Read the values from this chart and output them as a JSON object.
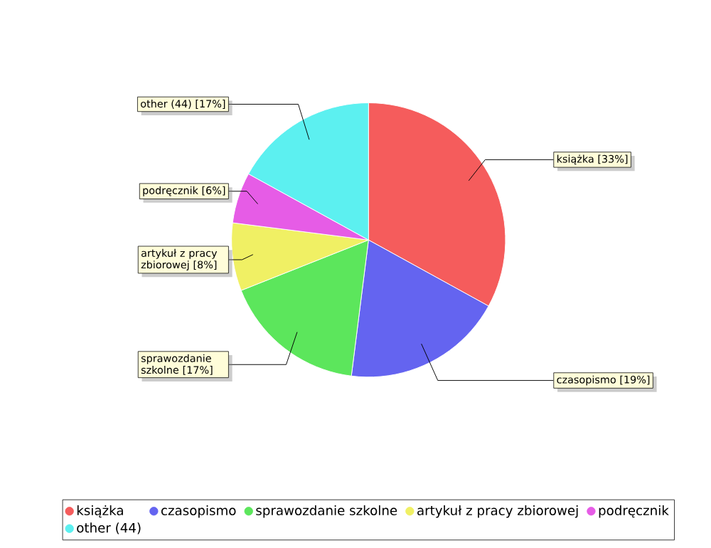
{
  "chart_data": {
    "type": "pie",
    "categories": [
      "książka",
      "czasopismo",
      "sprawozdanie szkolne",
      "artykuł z pracy zbiorowej",
      "podręcznik",
      "other (44)"
    ],
    "values": [
      33,
      19,
      17,
      8,
      6,
      17
    ],
    "value_labels": [
      "książka [33%]",
      "czasopismo [19%]",
      "sprawozdanie szkolne [17%]",
      "artykuł z pracy zbiorowej [8%]",
      "podręcznik [6%]",
      "other (44) [17%]"
    ],
    "colors": [
      "#f55c5c",
      "#6464f0",
      "#5ce65c",
      "#f0f064",
      "#e65ce6",
      "#5cf0f0"
    ],
    "legend": "bottom"
  }
}
